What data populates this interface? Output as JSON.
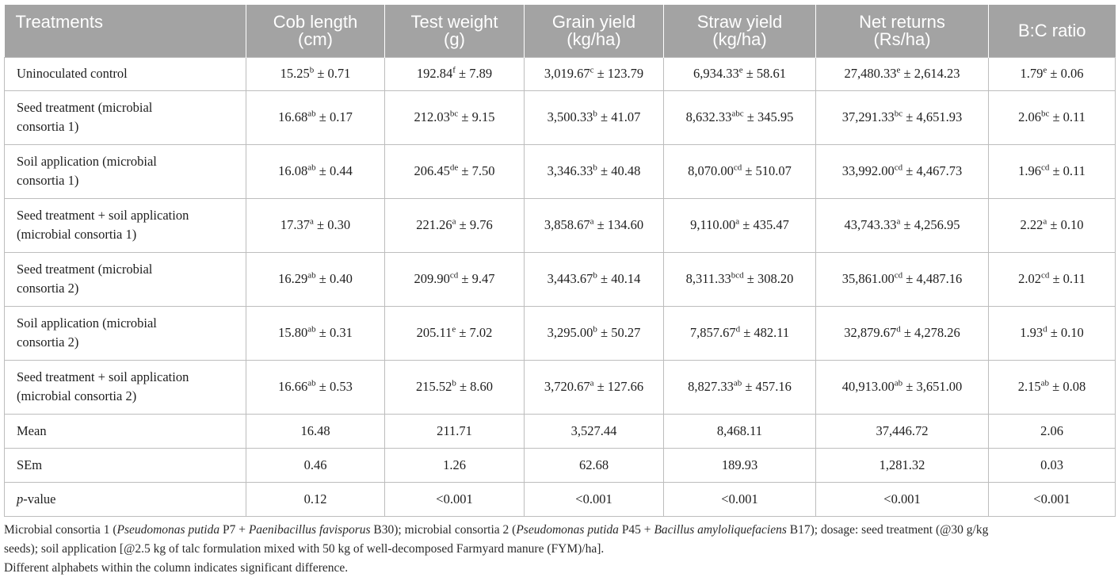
{
  "table": {
    "headers": [
      [
        "Treatments",
        ""
      ],
      [
        "Cob length",
        "(cm)"
      ],
      [
        "Test weight",
        "(g)"
      ],
      [
        "Grain yield",
        "(kg/ha)"
      ],
      [
        "Straw yield",
        "(kg/ha)"
      ],
      [
        "Net returns",
        "(Rs/ha)"
      ],
      [
        "B:C ratio",
        ""
      ]
    ],
    "rows": [
      {
        "label": [
          "Uninoculated control",
          ""
        ],
        "cells": [
          {
            "v": "15.25",
            "s": "b",
            "e": "0.71"
          },
          {
            "v": "192.84",
            "s": "f",
            "e": "7.89"
          },
          {
            "v": "3,019.67",
            "s": "c",
            "e": "123.79"
          },
          {
            "v": "6,934.33",
            "s": "e",
            "e": "58.61"
          },
          {
            "v": "27,480.33",
            "s": "e",
            "e": "2,614.23"
          },
          {
            "v": "1.79",
            "s": "e",
            "e": "0.06"
          }
        ]
      },
      {
        "label": [
          "Seed treatment (microbial",
          "consortia 1)"
        ],
        "cells": [
          {
            "v": "16.68",
            "s": "ab",
            "e": "0.17"
          },
          {
            "v": "212.03",
            "s": "bc",
            "e": "9.15"
          },
          {
            "v": "3,500.33",
            "s": "b",
            "e": "41.07"
          },
          {
            "v": "8,632.33",
            "s": "abc",
            "e": "345.95"
          },
          {
            "v": "37,291.33",
            "s": "bc",
            "e": "4,651.93"
          },
          {
            "v": "2.06",
            "s": "bc",
            "e": "0.11"
          }
        ]
      },
      {
        "label": [
          "Soil application (microbial",
          "consortia 1)"
        ],
        "cells": [
          {
            "v": "16.08",
            "s": "ab",
            "e": "0.44"
          },
          {
            "v": "206.45",
            "s": "de",
            "e": "7.50"
          },
          {
            "v": "3,346.33",
            "s": "b",
            "e": "40.48"
          },
          {
            "v": "8,070.00",
            "s": "cd",
            "e": "510.07"
          },
          {
            "v": "33,992.00",
            "s": "cd",
            "e": "4,467.73"
          },
          {
            "v": "1.96",
            "s": "cd",
            "e": "0.11"
          }
        ]
      },
      {
        "label": [
          "Seed treatment + soil application",
          "(microbial consortia 1)"
        ],
        "cells": [
          {
            "v": "17.37",
            "s": "a",
            "e": "0.30"
          },
          {
            "v": "221.26",
            "s": "a",
            "e": "9.76"
          },
          {
            "v": "3,858.67",
            "s": "a",
            "e": "134.60"
          },
          {
            "v": "9,110.00",
            "s": "a",
            "e": "435.47"
          },
          {
            "v": "43,743.33",
            "s": "a",
            "e": "4,256.95"
          },
          {
            "v": "2.22",
            "s": "a",
            "e": "0.10"
          }
        ]
      },
      {
        "label": [
          "Seed treatment (microbial",
          "consortia 2)"
        ],
        "cells": [
          {
            "v": "16.29",
            "s": "ab",
            "e": "0.40"
          },
          {
            "v": "209.90",
            "s": "cd",
            "e": "9.47"
          },
          {
            "v": "3,443.67",
            "s": "b",
            "e": "40.14"
          },
          {
            "v": "8,311.33",
            "s": "bcd",
            "e": "308.20"
          },
          {
            "v": "35,861.00",
            "s": "cd",
            "e": "4,487.16"
          },
          {
            "v": "2.02",
            "s": "cd",
            "e": "0.11"
          }
        ]
      },
      {
        "label": [
          "Soil application (microbial",
          "consortia 2)"
        ],
        "cells": [
          {
            "v": "15.80",
            "s": "ab",
            "e": "0.31"
          },
          {
            "v": "205.11",
            "s": "e",
            "e": "7.02"
          },
          {
            "v": "3,295.00",
            "s": "b",
            "e": "50.27"
          },
          {
            "v": "7,857.67",
            "s": "d",
            "e": "482.11"
          },
          {
            "v": "32,879.67",
            "s": "d",
            "e": "4,278.26"
          },
          {
            "v": "1.93",
            "s": "d",
            "e": "0.10"
          }
        ]
      },
      {
        "label": [
          "Seed treatment + soil application",
          "(microbial consortia 2)"
        ],
        "cells": [
          {
            "v": "16.66",
            "s": "ab",
            "e": "0.53"
          },
          {
            "v": "215.52",
            "s": "b",
            "e": "8.60"
          },
          {
            "v": "3,720.67",
            "s": "a",
            "e": "127.66"
          },
          {
            "v": "8,827.33",
            "s": "ab",
            "e": "457.16"
          },
          {
            "v": "40,913.00",
            "s": "ab",
            "e": "3,651.00"
          },
          {
            "v": "2.15",
            "s": "ab",
            "e": "0.08"
          }
        ]
      }
    ],
    "stats": [
      {
        "label": "Mean",
        "italic": "",
        "values": [
          "16.48",
          "211.71",
          "3,527.44",
          "8,468.11",
          "37,446.72",
          "2.06"
        ]
      },
      {
        "label": "SEm",
        "italic": "",
        "values": [
          "0.46",
          "1.26",
          "62.68",
          "189.93",
          "1,281.32",
          "0.03"
        ]
      },
      {
        "label": "-value",
        "italic": "p",
        "values": [
          "0.12",
          "<0.001",
          "<0.001",
          "<0.001",
          "<0.001",
          "<0.001"
        ]
      }
    ],
    "pm": "±"
  },
  "notes": {
    "line1": [
      {
        "t": "Microbial consortia 1 (",
        "i": false
      },
      {
        "t": "Pseudomonas putida",
        "i": true
      },
      {
        "t": " P7 + ",
        "i": false
      },
      {
        "t": "Paenibacillus favisporus",
        "i": true
      },
      {
        "t": " B30); microbial consortia 2 (",
        "i": false
      },
      {
        "t": "Pseudomonas putida",
        "i": true
      },
      {
        "t": " P45 + ",
        "i": false
      },
      {
        "t": "Bacillus amyloliquefaciens",
        "i": true
      },
      {
        "t": " B17); dosage: seed treatment (@30 g/kg",
        "i": false
      }
    ],
    "line2": "seeds); soil application [@2.5 kg of talc formulation mixed with 50 kg of well-decomposed Farmyard manure (FYM)/ha].",
    "line3": "Different alphabets within the column indicates significant difference."
  }
}
